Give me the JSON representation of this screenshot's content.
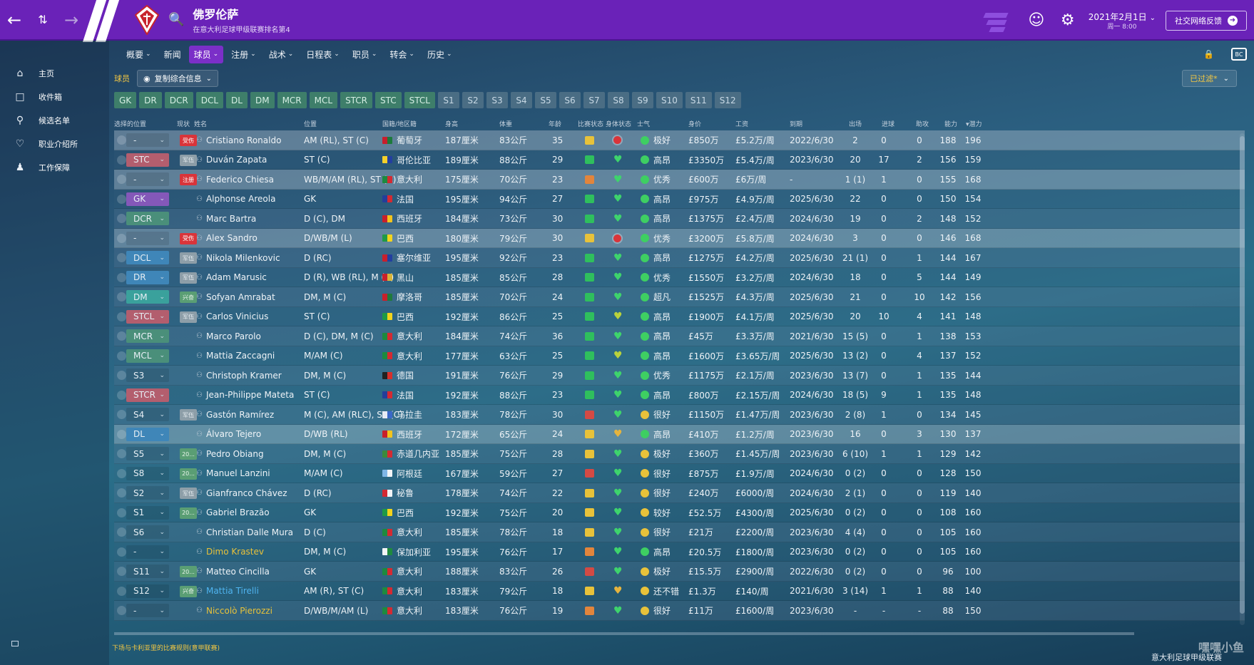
{
  "header": {
    "club_name": "佛罗伦萨",
    "club_sub": "在意大利足球甲级联赛排名第4",
    "date": "2021年2月1日",
    "day": "周一 8:00",
    "feedback": "社交网络反馈"
  },
  "sidebar": {
    "items": [
      {
        "label": "主页",
        "icon": "home-icon"
      },
      {
        "label": "收件箱",
        "icon": "inbox-icon"
      },
      {
        "label": "候选名单",
        "icon": "search-icon"
      },
      {
        "label": "职业介绍所",
        "icon": "heart-icon"
      },
      {
        "label": "工作保障",
        "icon": "people-icon"
      }
    ]
  },
  "menu": [
    "概要",
    "新闻",
    "球员",
    "注册",
    "战术",
    "日程表",
    "职员",
    "转会",
    "历史"
  ],
  "subbar": {
    "label": "球员",
    "view": "复制综合信息",
    "filter": "已过滤*"
  },
  "positions": [
    "GK",
    "DR",
    "DCR",
    "DCL",
    "DL",
    "DM",
    "MCR",
    "MCL",
    "STCR",
    "STC",
    "STCL"
  ],
  "slots": [
    "S1",
    "S2",
    "S3",
    "S4",
    "S5",
    "S6",
    "S7",
    "S8",
    "S9",
    "S10",
    "S11",
    "S12"
  ],
  "columns": [
    "选择的位置",
    "现状",
    "姓名",
    "位置",
    "国籍/地区籍",
    "身高",
    "体重",
    "年龄",
    "比赛状态",
    "身体状态",
    "士气",
    "身价",
    "工资",
    "到期",
    "出场",
    "进球",
    "助攻",
    "能力",
    "▾潜力"
  ],
  "players": [
    {
      "sel": "-",
      "status": "受伤",
      "name": "Cristiano Ronaldo",
      "pos": "AM (RL), ST (C)",
      "nation": "葡萄牙",
      "height": "187厘米",
      "weight": "83公斤",
      "age": "35",
      "morale": "极好",
      "value": "£850万",
      "wage": "£5.2万/周",
      "expires": "2022/6/30",
      "apps": "2",
      "goals": "0",
      "assists": "0",
      "ca": "188",
      "pa": "196"
    },
    {
      "sel": "STC",
      "status": "军伍",
      "name": "Duván Zapata",
      "pos": "ST (C)",
      "nation": "哥伦比亚",
      "height": "189厘米",
      "weight": "88公斤",
      "age": "29",
      "morale": "高昂",
      "value": "£3350万",
      "wage": "£5.4万/周",
      "expires": "2023/6/30",
      "apps": "20",
      "goals": "17",
      "assists": "2",
      "ca": "156",
      "pa": "159"
    },
    {
      "sel": "-",
      "status": "注册",
      "name": "Federico Chiesa",
      "pos": "WB/M/AM (RL), ST (C)",
      "nation": "意大利",
      "height": "175厘米",
      "weight": "70公斤",
      "age": "23",
      "morale": "优秀",
      "value": "£600万",
      "wage": "£6万/周",
      "expires": "-",
      "apps": "1 (1)",
      "goals": "1",
      "assists": "0",
      "ca": "155",
      "pa": "168"
    },
    {
      "sel": "GK",
      "status": "",
      "name": "Alphonse Areola",
      "pos": "GK",
      "nation": "法国",
      "height": "195厘米",
      "weight": "94公斤",
      "age": "27",
      "morale": "高昂",
      "value": "£975万",
      "wage": "£4.9万/周",
      "expires": "2025/6/30",
      "apps": "22",
      "goals": "0",
      "assists": "0",
      "ca": "150",
      "pa": "154"
    },
    {
      "sel": "DCR",
      "status": "",
      "name": "Marc Bartra",
      "pos": "D (C), DM",
      "nation": "西班牙",
      "height": "184厘米",
      "weight": "73公斤",
      "age": "30",
      "morale": "高昂",
      "value": "£1375万",
      "wage": "£2.4万/周",
      "expires": "2024/6/30",
      "apps": "19",
      "goals": "0",
      "assists": "2",
      "ca": "148",
      "pa": "152"
    },
    {
      "sel": "-",
      "status": "受伤",
      "name": "Alex Sandro",
      "pos": "D/WB/M (L)",
      "nation": "巴西",
      "height": "180厘米",
      "weight": "79公斤",
      "age": "30",
      "morale": "优秀",
      "value": "£3200万",
      "wage": "£5.8万/周",
      "expires": "2024/6/30",
      "apps": "3",
      "goals": "0",
      "assists": "0",
      "ca": "146",
      "pa": "168"
    },
    {
      "sel": "DCL",
      "status": "军伍",
      "name": "Nikola Milenkovic",
      "pos": "D (RC)",
      "nation": "塞尔维亚",
      "height": "195厘米",
      "weight": "92公斤",
      "age": "23",
      "morale": "高昂",
      "value": "£1275万",
      "wage": "£4.2万/周",
      "expires": "2025/6/30",
      "apps": "21 (1)",
      "goals": "0",
      "assists": "1",
      "ca": "144",
      "pa": "167"
    },
    {
      "sel": "DR",
      "status": "军伍",
      "name": "Adam Marusic",
      "pos": "D (R), WB (RL), M (R)",
      "nation": "黑山",
      "height": "185厘米",
      "weight": "85公斤",
      "age": "28",
      "morale": "优秀",
      "value": "£1550万",
      "wage": "£3.2万/周",
      "expires": "2024/6/30",
      "apps": "18",
      "goals": "0",
      "assists": "5",
      "ca": "144",
      "pa": "149"
    },
    {
      "sel": "DM",
      "status": "兴奋",
      "name": "Sofyan Amrabat",
      "pos": "DM, M (C)",
      "nation": "摩洛哥",
      "height": "185厘米",
      "weight": "70公斤",
      "age": "24",
      "morale": "超凡",
      "value": "£1525万",
      "wage": "£4.3万/周",
      "expires": "2025/6/30",
      "apps": "21",
      "goals": "0",
      "assists": "10",
      "ca": "142",
      "pa": "156"
    },
    {
      "sel": "STCL",
      "status": "军伍",
      "name": "Carlos Vinicius",
      "pos": "ST (C)",
      "nation": "巴西",
      "height": "192厘米",
      "weight": "86公斤",
      "age": "25",
      "morale": "高昂",
      "value": "£1900万",
      "wage": "£4.1万/周",
      "expires": "2025/6/30",
      "apps": "20",
      "goals": "10",
      "assists": "4",
      "ca": "141",
      "pa": "148"
    },
    {
      "sel": "MCR",
      "status": "",
      "name": "Marco Parolo",
      "pos": "D (C), DM, M (C)",
      "nation": "意大利",
      "height": "184厘米",
      "weight": "74公斤",
      "age": "36",
      "morale": "高昂",
      "value": "£45万",
      "wage": "£3.3万/周",
      "expires": "2021/6/30",
      "apps": "15 (5)",
      "goals": "0",
      "assists": "1",
      "ca": "138",
      "pa": "153"
    },
    {
      "sel": "MCL",
      "status": "",
      "name": "Mattia Zaccagni",
      "pos": "M/AM (C)",
      "nation": "意大利",
      "height": "177厘米",
      "weight": "63公斤",
      "age": "25",
      "morale": "高昂",
      "value": "£1600万",
      "wage": "£3.65万/周",
      "expires": "2025/6/30",
      "apps": "13 (2)",
      "goals": "0",
      "assists": "4",
      "ca": "137",
      "pa": "152"
    },
    {
      "sel": "S3",
      "status": "",
      "name": "Christoph Kramer",
      "pos": "DM, M (C)",
      "nation": "德国",
      "height": "191厘米",
      "weight": "76公斤",
      "age": "29",
      "morale": "优秀",
      "value": "£1175万",
      "wage": "£2.1万/周",
      "expires": "2023/6/30",
      "apps": "13 (7)",
      "goals": "0",
      "assists": "1",
      "ca": "135",
      "pa": "144"
    },
    {
      "sel": "STCR",
      "status": "",
      "name": "Jean-Philippe Mateta",
      "pos": "ST (C)",
      "nation": "法国",
      "height": "192厘米",
      "weight": "88公斤",
      "age": "23",
      "morale": "高昂",
      "value": "£800万",
      "wage": "£2.15万/周",
      "expires": "2024/6/30",
      "apps": "18 (5)",
      "goals": "9",
      "assists": "1",
      "ca": "135",
      "pa": "148"
    },
    {
      "sel": "S4",
      "status": "军伍",
      "name": "Gastón Ramírez",
      "pos": "M (C), AM (RLC), ST (C)",
      "nation": "乌拉圭",
      "height": "183厘米",
      "weight": "78公斤",
      "age": "30",
      "morale": "很好",
      "value": "£1150万",
      "wage": "£1.47万/周",
      "expires": "2023/6/30",
      "apps": "2 (8)",
      "goals": "1",
      "assists": "0",
      "ca": "134",
      "pa": "145"
    },
    {
      "sel": "DL",
      "status": "",
      "name": "Álvaro Tejero",
      "pos": "D/WB (RL)",
      "nation": "西班牙",
      "height": "172厘米",
      "weight": "65公斤",
      "age": "24",
      "morale": "高昂",
      "value": "£410万",
      "wage": "£1.2万/周",
      "expires": "2023/6/30",
      "apps": "16",
      "goals": "0",
      "assists": "3",
      "ca": "130",
      "pa": "137"
    },
    {
      "sel": "S5",
      "status": "20...",
      "name": "Pedro Obiang",
      "pos": "DM, M (C)",
      "nation": "赤道几内亚",
      "height": "185厘米",
      "weight": "75公斤",
      "age": "28",
      "morale": "极好",
      "value": "£360万",
      "wage": "£1.45万/周",
      "expires": "2023/6/30",
      "apps": "6 (10)",
      "goals": "1",
      "assists": "1",
      "ca": "129",
      "pa": "142"
    },
    {
      "sel": "S8",
      "status": "20...",
      "name": "Manuel Lanzini",
      "pos": "M/AM (C)",
      "nation": "阿根廷",
      "height": "167厘米",
      "weight": "59公斤",
      "age": "27",
      "morale": "很好",
      "value": "£875万",
      "wage": "£1.9万/周",
      "expires": "2024/6/30",
      "apps": "0 (2)",
      "goals": "0",
      "assists": "0",
      "ca": "128",
      "pa": "150"
    },
    {
      "sel": "S2",
      "status": "军伍",
      "name": "Gianfranco Chávez",
      "pos": "D (RC)",
      "nation": "秘鲁",
      "height": "178厘米",
      "weight": "74公斤",
      "age": "22",
      "morale": "很好",
      "value": "£240万",
      "wage": "£6000/周",
      "expires": "2024/6/30",
      "apps": "2 (1)",
      "goals": "0",
      "assists": "0",
      "ca": "119",
      "pa": "140"
    },
    {
      "sel": "S1",
      "status": "20...",
      "name": "Gabriel Brazão",
      "pos": "GK",
      "nation": "巴西",
      "height": "192厘米",
      "weight": "75公斤",
      "age": "20",
      "morale": "较好",
      "value": "£52.5万",
      "wage": "£4300/周",
      "expires": "2025/6/30",
      "apps": "0 (2)",
      "goals": "0",
      "assists": "0",
      "ca": "108",
      "pa": "160"
    },
    {
      "sel": "S6",
      "status": "",
      "name": "Christian Dalle Mura",
      "pos": "D (C)",
      "nation": "意大利",
      "height": "185厘米",
      "weight": "78公斤",
      "age": "18",
      "morale": "很好",
      "value": "£21万",
      "wage": "£2200/周",
      "expires": "2023/6/30",
      "apps": "4 (4)",
      "goals": "0",
      "assists": "0",
      "ca": "105",
      "pa": "160"
    },
    {
      "sel": "-",
      "status": "",
      "name": "Dimo Krastev",
      "pos": "DM, M (C)",
      "nation": "保加利亚",
      "height": "195厘米",
      "weight": "76公斤",
      "age": "17",
      "morale": "高昂",
      "value": "£20.5万",
      "wage": "£1800/周",
      "expires": "2023/6/30",
      "apps": "0 (2)",
      "goals": "0",
      "assists": "0",
      "ca": "105",
      "pa": "160"
    },
    {
      "sel": "S11",
      "status": "20...",
      "name": "Matteo Cincilla",
      "pos": "GK",
      "nation": "意大利",
      "height": "188厘米",
      "weight": "83公斤",
      "age": "26",
      "morale": "极好",
      "value": "£15.5万",
      "wage": "£2900/周",
      "expires": "2022/6/30",
      "apps": "0 (2)",
      "goals": "0",
      "assists": "0",
      "ca": "96",
      "pa": "100"
    },
    {
      "sel": "S12",
      "status": "兴奋",
      "name": "Mattia Tirelli",
      "pos": "AM (R), ST (C)",
      "nation": "意大利",
      "height": "183厘米",
      "weight": "79公斤",
      "age": "18",
      "morale": "还不错",
      "value": "£1.3万",
      "wage": "£140/周",
      "expires": "2021/6/30",
      "apps": "3 (14)",
      "goals": "1",
      "assists": "1",
      "ca": "88",
      "pa": "140"
    },
    {
      "sel": "-",
      "status": "",
      "name": "Niccolò Pierozzi",
      "pos": "D/WB/M/AM (L)",
      "nation": "意大利",
      "height": "183厘米",
      "weight": "76公斤",
      "age": "19",
      "morale": "很好",
      "value": "£11万",
      "wage": "£1600/周",
      "expires": "2023/6/30",
      "apps": "-",
      "goals": "-",
      "assists": "-",
      "ca": "88",
      "pa": "150"
    }
  ],
  "footer": {
    "left": "下场与卡利亚里的比赛规则(意甲联赛)",
    "right": "意大利足球甲级联赛",
    "watermark": "嘿嘿小鱼"
  }
}
